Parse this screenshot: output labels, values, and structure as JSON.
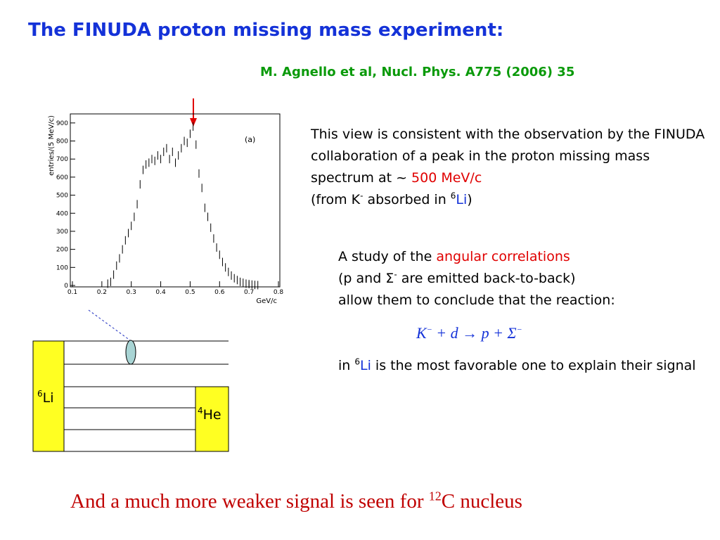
{
  "title": "The FINUDA proton missing mass experiment:",
  "reference": "M. Agnello et al, Nucl. Phys. A775 (2006) 35",
  "plot": {
    "type": "histogram",
    "y_label": "entries/(5 MeV/c)",
    "x_label": "GeV/c",
    "panel_label": "(a)",
    "xlim": [
      0.1,
      0.8
    ],
    "ylim": [
      0,
      950
    ],
    "xticks": [
      0.1,
      0.2,
      0.3,
      0.4,
      0.5,
      0.6,
      0.7,
      0.8
    ],
    "yticks": [
      0,
      100,
      200,
      300,
      400,
      500,
      600,
      700,
      800,
      900
    ],
    "x": [
      0.22,
      0.23,
      0.24,
      0.25,
      0.26,
      0.27,
      0.28,
      0.29,
      0.3,
      0.31,
      0.32,
      0.33,
      0.34,
      0.35,
      0.36,
      0.37,
      0.38,
      0.39,
      0.4,
      0.41,
      0.42,
      0.43,
      0.44,
      0.45,
      0.46,
      0.47,
      0.48,
      0.49,
      0.5,
      0.51,
      0.52,
      0.53,
      0.54,
      0.55,
      0.56,
      0.57,
      0.58,
      0.59,
      0.6,
      0.61,
      0.62,
      0.63,
      0.64,
      0.65,
      0.66,
      0.67,
      0.68,
      0.69,
      0.7,
      0.71,
      0.72,
      0.73
    ],
    "values": [
      10,
      20,
      60,
      110,
      150,
      200,
      250,
      290,
      330,
      380,
      450,
      560,
      640,
      670,
      680,
      700,
      690,
      720,
      700,
      740,
      760,
      700,
      740,
      680,
      720,
      760,
      800,
      790,
      840,
      880,
      780,
      620,
      540,
      430,
      380,
      320,
      260,
      210,
      170,
      130,
      100,
      75,
      55,
      40,
      30,
      20,
      15,
      10,
      8,
      5,
      3,
      2
    ]
  },
  "paragraph1": [
    "This view is consistent with the observation by the FINUDA collaboration of a peak in the proton missing mass spectrum at ~ ",
    "500 MeV/c",
    "(from K",
    "-",
    " absorbed in ",
    "6",
    "Li",
    ")"
  ],
  "paragraph2": [
    "A study of the ",
    "angular correlations",
    "(p and Σ",
    "-",
    " are emitted back-to-back)",
    "allow them to conclude that the reaction:"
  ],
  "equation": [
    "K",
    "−",
    " + d → p + Σ",
    "−"
  ],
  "paragraph3": [
    "in ",
    "6",
    "Li",
    " is the most favorable one to explain their signal"
  ],
  "diagram": {
    "left": [
      "6",
      "Li"
    ],
    "right": [
      "4",
      "He"
    ]
  },
  "conclusion": [
    "And a much more weaker signal is seen for ",
    "12",
    "C nucleus"
  ]
}
